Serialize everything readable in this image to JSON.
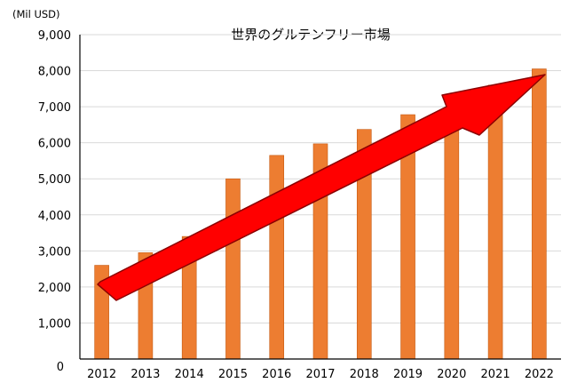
{
  "chart_data": {
    "type": "bar",
    "title": "世界のグルテンフリー市場",
    "unit_label": "(Mil USD)",
    "xlabel": "",
    "ylabel": "",
    "categories": [
      "2012",
      "2013",
      "2014",
      "2015",
      "2016",
      "2017",
      "2018",
      "2019",
      "2020",
      "2021",
      "2022"
    ],
    "values": [
      2600,
      2950,
      3400,
      5000,
      5650,
      5970,
      6370,
      6780,
      6500,
      7600,
      8050
    ],
    "y_ticks": [
      "0",
      "1,000",
      "2,000",
      "3,000",
      "4,000",
      "5,000",
      "6,000",
      "7,000",
      "8,000",
      "9,000"
    ],
    "ylim": [
      0,
      9000
    ],
    "grid": true,
    "legend": "none",
    "colors": {
      "bar": "#ED7D31",
      "bar_edge": "#C55A11",
      "arrow": "#FF0000",
      "arrow_edge": "#8B0000",
      "grid": "#D9D9D9",
      "axis": "#000000"
    },
    "annotation": "trend-arrow"
  }
}
